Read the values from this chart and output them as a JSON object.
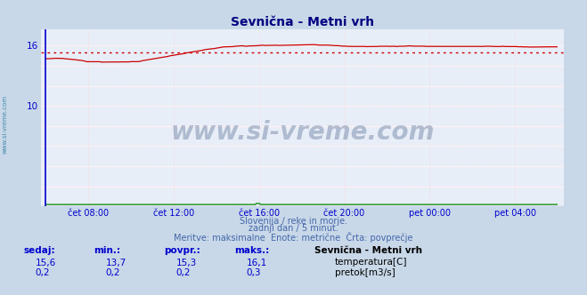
{
  "title": "Sevnična - Metni vrh",
  "title_color": "#000080",
  "title_fontsize": 10,
  "bg_color": "#c8d8e8",
  "plot_bg_color": "#e8eef8",
  "grid_h_color": "#ffffff",
  "grid_v_color": "#ffcccc",
  "grid_h_minor_color": "#ffcccc",
  "temp_color": "#cc0000",
  "pretok_color": "#008800",
  "avg_temp": 15.3,
  "avg_pretok": 0.2,
  "x_tick_labels": [
    "čet 08:00",
    "čet 12:00",
    "čet 16:00",
    "čet 20:00",
    "pet 00:00",
    "pet 04:00"
  ],
  "x_tick_positions": [
    72,
    216,
    360,
    504,
    648,
    792
  ],
  "n_points": 864,
  "y_min": 0,
  "y_max": 17.6,
  "y_ticks": [
    10,
    16
  ],
  "footer_line1": "Slovenija / reke in morje.",
  "footer_line2": "zadnji dan / 5 minut.",
  "footer_line3": "Meritve: maksimalne  Enote: metrične  Črta: povprečje",
  "footer_color": "#4466aa",
  "label_color": "#0000cc",
  "table_headers": [
    "sedaj:",
    "min.:",
    "povpr.:",
    "maks.:"
  ],
  "table_temp": [
    "15,6",
    "13,7",
    "15,3",
    "16,1"
  ],
  "table_pretok": [
    "0,2",
    "0,2",
    "0,2",
    "0,3"
  ],
  "station_name": "Sevnična - Metni vrh",
  "legend_temp": "temperatura[C]",
  "legend_pretok": "pretok[m3/s]",
  "watermark_text": "www.si-vreme.com",
  "watermark_color": "#1a3a6a",
  "side_text": "www.si-vreme.com",
  "side_color": "#4488aa",
  "left_border_color": "#0000cc",
  "bottom_border_color": "#880000",
  "arrow_color": "#880000"
}
